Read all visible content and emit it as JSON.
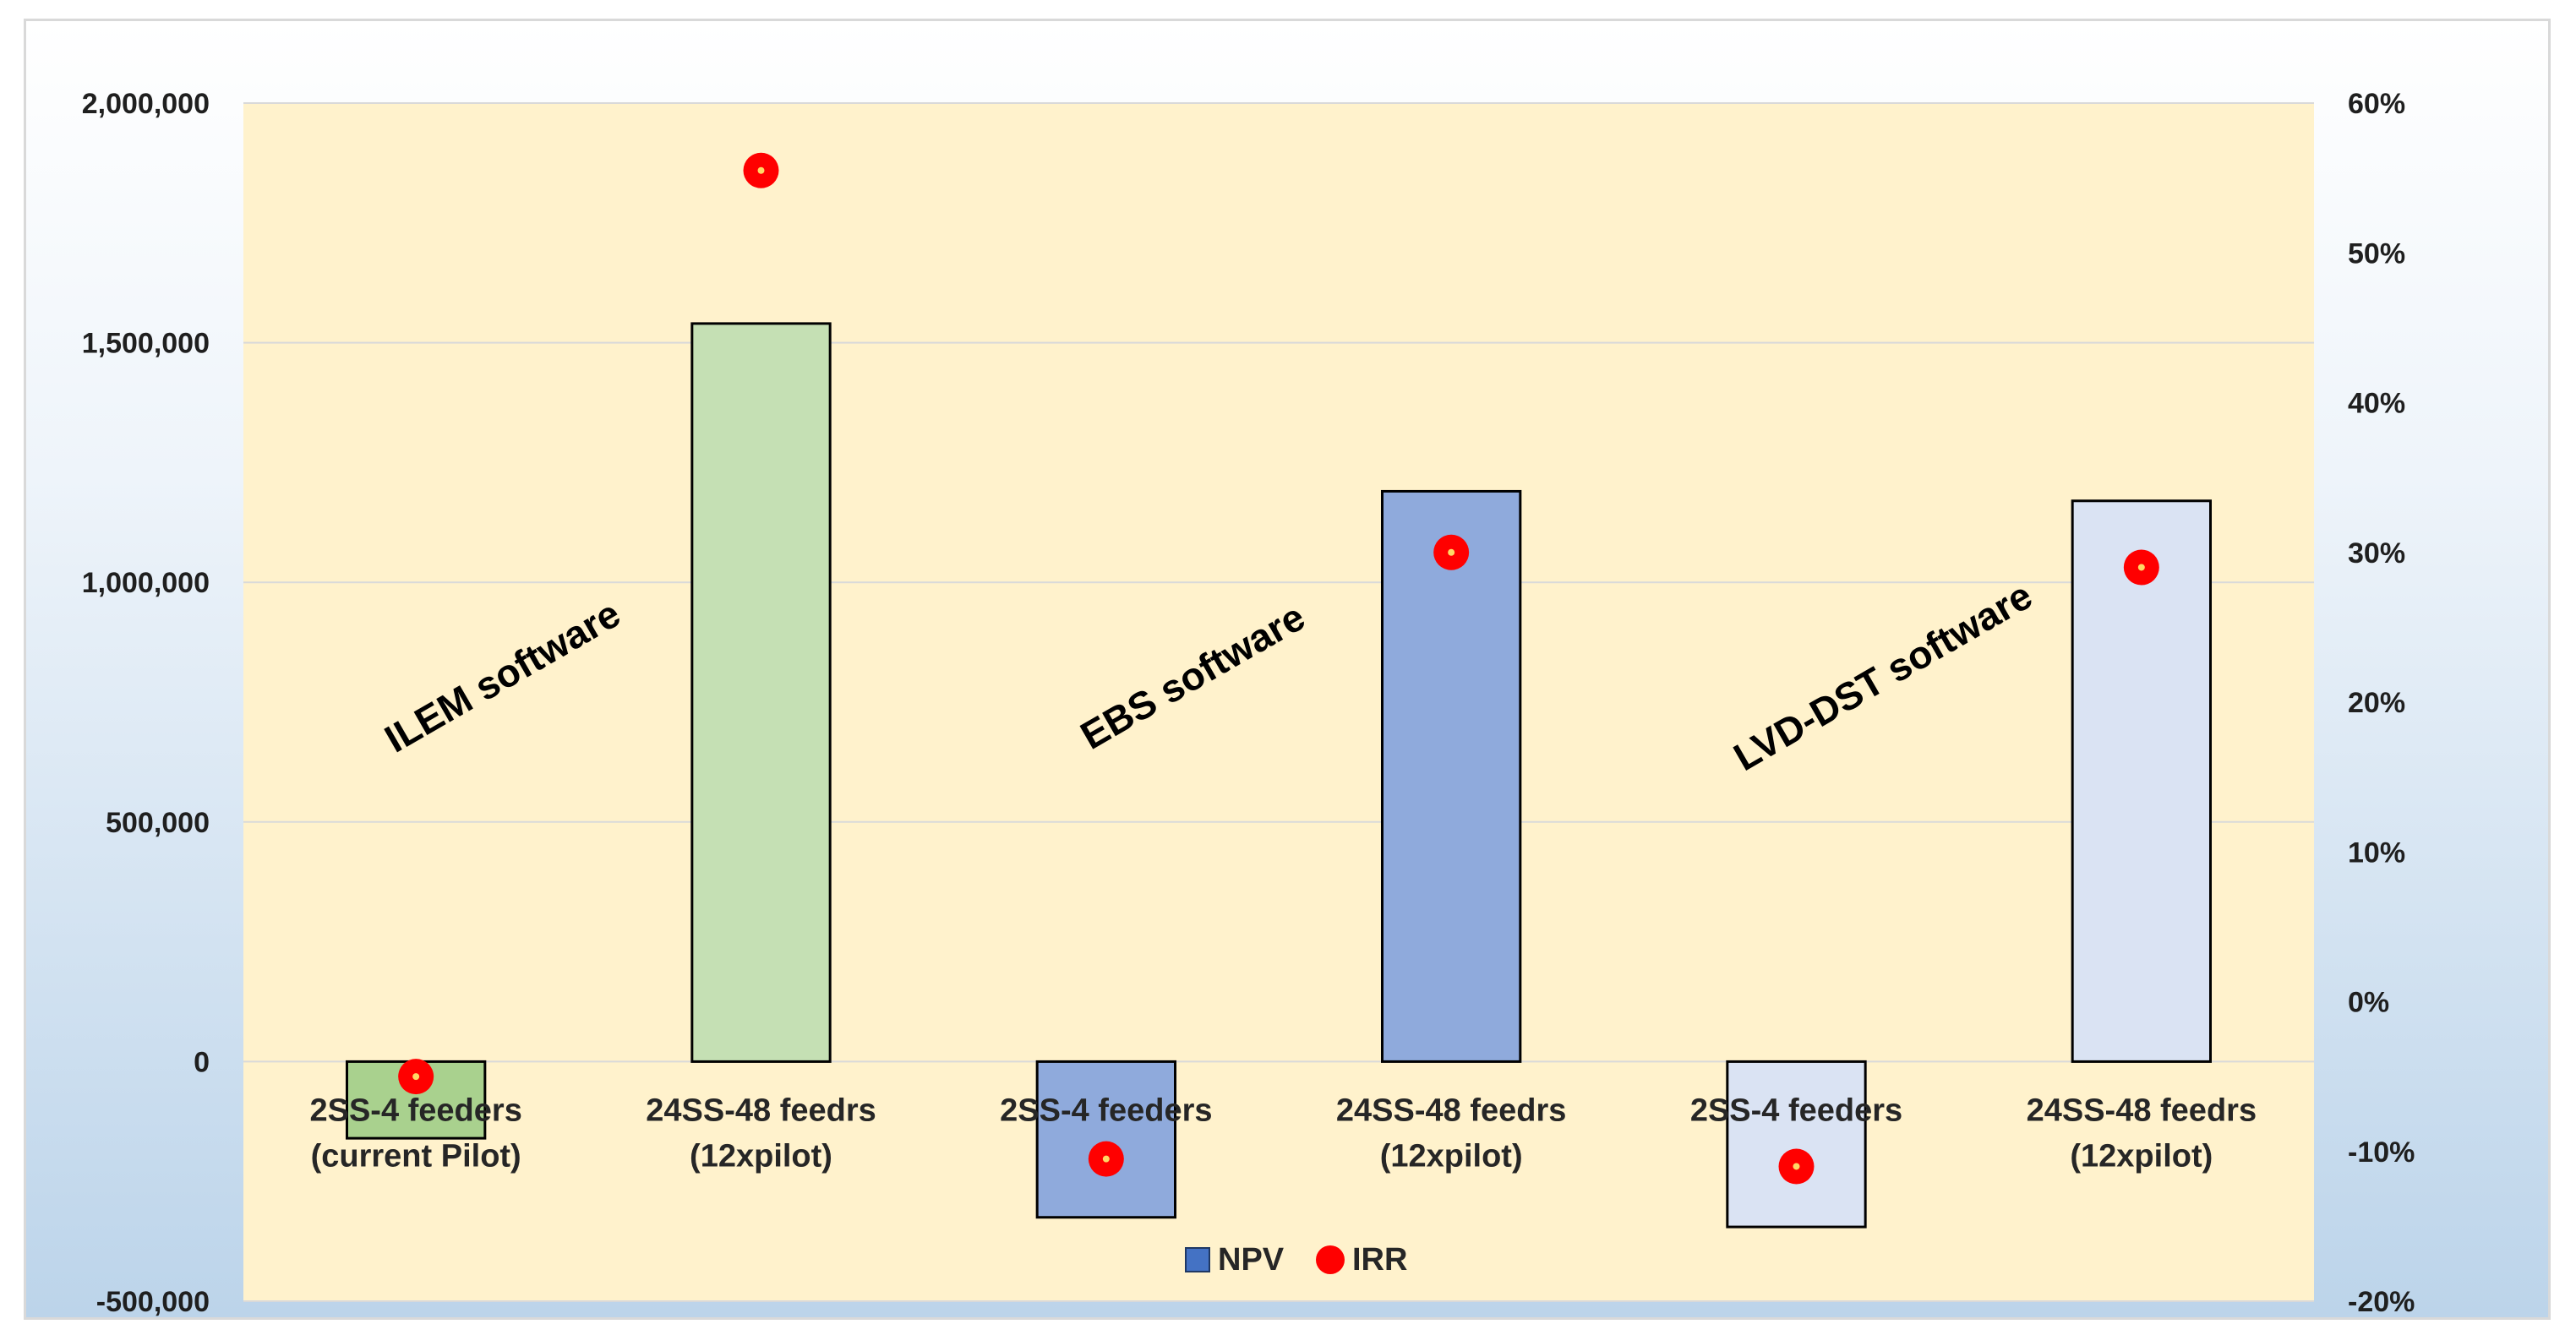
{
  "chart_data": {
    "type": "bar",
    "categories": [
      [
        "2SS-4 feeders",
        "(current Pilot)"
      ],
      [
        "24SS-48 feedrs",
        "(12xpilot)"
      ],
      [
        "2SS-4 feeders",
        ""
      ],
      [
        "24SS-48 feedrs",
        "(12xpilot)"
      ],
      [
        "2SS-4 feeders",
        ""
      ],
      [
        "24SS-48 feedrs",
        "(12xpilot)"
      ]
    ],
    "series": [
      {
        "name": "NPV",
        "axis": "left",
        "type": "bar",
        "values": [
          -160000,
          1540000,
          -325000,
          1190000,
          -345000,
          1170000
        ],
        "colors": [
          "#a9d18e",
          "#c5e0b4",
          "#8faadc",
          "#8faadc",
          "#dae3f3",
          "#dae3f3"
        ]
      },
      {
        "name": "IRR",
        "axis": "right",
        "type": "scatter",
        "values": [
          -0.05,
          0.555,
          -0.105,
          0.3,
          -0.11,
          0.29
        ],
        "color": "#ff0000"
      }
    ],
    "group_labels": [
      "ILEM software",
      "EBS software",
      "LVD-DST software"
    ],
    "y_left": {
      "min": -500000,
      "max": 2000000,
      "ticks": [
        -500000,
        0,
        500000,
        1000000,
        1500000,
        2000000
      ],
      "tick_labels": [
        "-500,000",
        "0",
        "500,000",
        "1,000,000",
        "1,500,000",
        "2,000,000"
      ]
    },
    "y_right": {
      "min": -0.2,
      "max": 0.6,
      "ticks": [
        -0.2,
        -0.1,
        0,
        0.1,
        0.2,
        0.3,
        0.4,
        0.5,
        0.6
      ],
      "tick_labels": [
        "-20%",
        "-10%",
        "0%",
        "10%",
        "20%",
        "30%",
        "40%",
        "50%",
        "60%"
      ]
    },
    "gridlines": true,
    "plot_background": "#fff2cc",
    "legend_position": "bottom",
    "legend": [
      {
        "label": "NPV",
        "color": "#4472c4",
        "shape": "square"
      },
      {
        "label": "IRR",
        "color": "#ff0000",
        "shape": "circle"
      }
    ]
  }
}
